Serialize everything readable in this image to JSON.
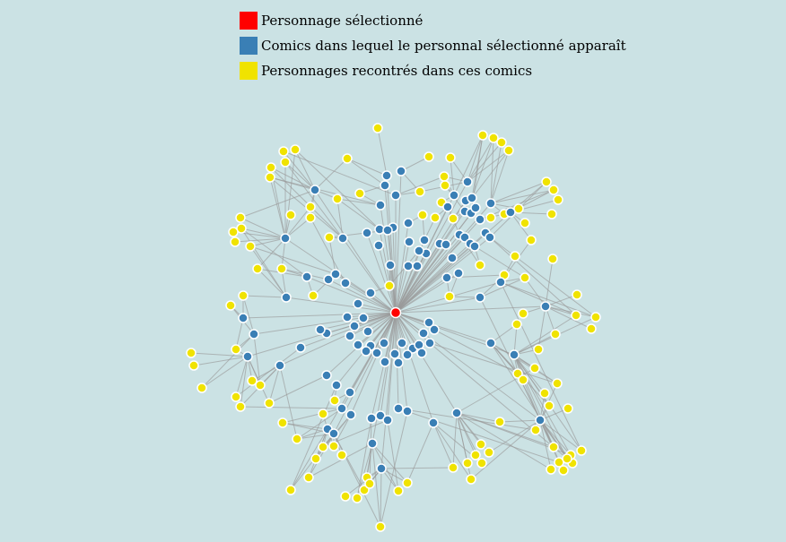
{
  "legend": [
    {
      "label": "Personnage sélectionné",
      "color": "#ff0000",
      "group": "selected"
    },
    {
      "label": "Comics dans lequel le personnal sélectionné apparaît",
      "color": "#3a7fb5",
      "group": "comic"
    },
    {
      "label": "Personnages recontrés dans ces comics",
      "color": "#f0e300",
      "group": "character"
    }
  ],
  "colors": {
    "background": "#cbe2e4",
    "link": "#999999",
    "node_stroke": "#ffffff"
  },
  "graph": {
    "selected_count": 1,
    "comic_count": 100,
    "character_count": 113
  }
}
